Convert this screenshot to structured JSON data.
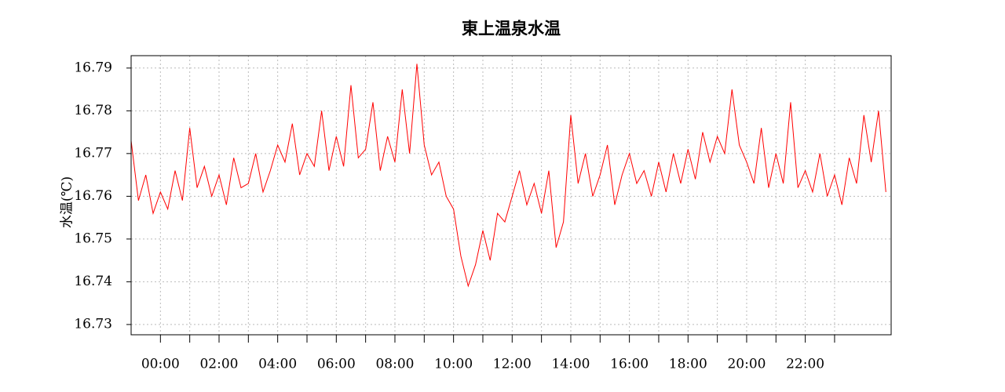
{
  "chart_data": {
    "type": "line",
    "title": "東上温泉水温",
    "y_label": "水温(℃)",
    "color": "#ff0000",
    "grid": true,
    "x": [
      -1,
      -0.75,
      -0.5,
      -0.25,
      0,
      0.25,
      0.5,
      0.75,
      1,
      1.25,
      1.5,
      1.75,
      2,
      2.25,
      2.5,
      2.75,
      3,
      3.25,
      3.5,
      3.75,
      4,
      4.25,
      4.5,
      4.75,
      5,
      5.25,
      5.5,
      5.75,
      6,
      6.25,
      6.5,
      6.75,
      7,
      7.25,
      7.5,
      7.75,
      8,
      8.25,
      8.5,
      8.75,
      9,
      9.25,
      9.5,
      9.75,
      10,
      10.25,
      10.5,
      10.75,
      11,
      11.25,
      11.5,
      11.75,
      12,
      12.25,
      12.5,
      12.75,
      13,
      13.25,
      13.5,
      13.75,
      14,
      14.25,
      14.5,
      14.75,
      15,
      15.25,
      15.5,
      15.75,
      16,
      16.25,
      16.5,
      16.75,
      17,
      17.25,
      17.5,
      17.75,
      18,
      18.25,
      18.5,
      18.75,
      19,
      19.25,
      19.5,
      19.75,
      20,
      20.25,
      20.5,
      20.75,
      21,
      21.25,
      21.5,
      21.75,
      22,
      22.25,
      22.5,
      22.75,
      23,
      23.25,
      23.5,
      23.75,
      24,
      24.25,
      24.5,
      24.75
    ],
    "values": [
      16.773,
      16.759,
      16.765,
      16.756,
      16.761,
      16.757,
      16.766,
      16.759,
      16.776,
      16.762,
      16.767,
      16.76,
      16.765,
      16.758,
      16.769,
      16.762,
      16.763,
      16.77,
      16.761,
      16.766,
      16.772,
      16.768,
      16.777,
      16.765,
      16.77,
      16.767,
      16.78,
      16.766,
      16.774,
      16.767,
      16.786,
      16.769,
      16.771,
      16.782,
      16.766,
      16.774,
      16.768,
      16.785,
      16.77,
      16.791,
      16.772,
      16.765,
      16.768,
      16.76,
      16.757,
      16.746,
      16.739,
      16.744,
      16.752,
      16.745,
      16.756,
      16.754,
      16.76,
      16.766,
      16.758,
      16.763,
      16.756,
      16.766,
      16.748,
      16.754,
      16.779,
      16.763,
      16.77,
      16.76,
      16.765,
      16.772,
      16.758,
      16.765,
      16.77,
      16.763,
      16.766,
      16.76,
      16.768,
      16.761,
      16.77,
      16.763,
      16.771,
      16.764,
      16.775,
      16.768,
      16.774,
      16.77,
      16.785,
      16.772,
      16.768,
      16.763,
      16.776,
      16.762,
      16.77,
      16.763,
      16.782,
      16.762,
      16.766,
      16.761,
      16.77,
      16.76,
      16.765,
      16.758,
      16.769,
      16.763,
      16.779,
      16.768,
      16.78,
      16.761
    ],
    "xlim": [
      -1,
      24.93
    ],
    "xticks": [
      {
        "value": 0,
        "label": "00:00"
      },
      {
        "value": 2,
        "label": "02:00"
      },
      {
        "value": 4,
        "label": "04:00"
      },
      {
        "value": 6,
        "label": "06:00"
      },
      {
        "value": 8,
        "label": "08:00"
      },
      {
        "value": 10,
        "label": "10:00"
      },
      {
        "value": 12,
        "label": "12:00"
      },
      {
        "value": 14,
        "label": "14:00"
      },
      {
        "value": 16,
        "label": "16:00"
      },
      {
        "value": 18,
        "label": "18:00"
      },
      {
        "value": 20,
        "label": "20:00"
      },
      {
        "value": 22,
        "label": "22:00"
      }
    ],
    "xminor_ticks": [
      1,
      3,
      5,
      7,
      9,
      11,
      13,
      15,
      17,
      19,
      21,
      23
    ],
    "ylim": [
      16.7276,
      16.7929
    ],
    "yticks": [
      16.73,
      16.74,
      16.75,
      16.76,
      16.77,
      16.78,
      16.79
    ]
  }
}
